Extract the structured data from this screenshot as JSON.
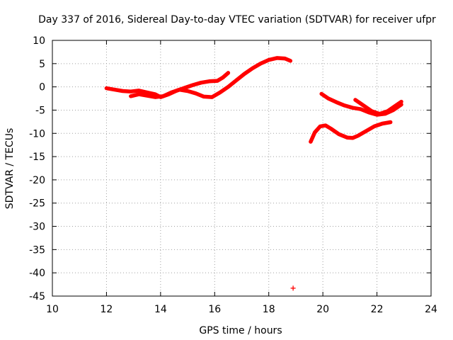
{
  "chart_data": {
    "type": "scatter",
    "title": "Day 337 of 2016, Sidereal Day-to-day VTEC variation (SDTVAR) for receiver ufpr",
    "xlabel": "GPS time / hours",
    "ylabel": "SDTVAR / TECUs",
    "xlim": [
      10,
      24
    ],
    "ylim": [
      -45,
      10
    ],
    "xticks": [
      10,
      12,
      14,
      16,
      18,
      20,
      22,
      24
    ],
    "yticks": [
      10,
      5,
      0,
      -5,
      -10,
      -15,
      -20,
      -25,
      -30,
      -35,
      -40,
      -45
    ],
    "grid": true,
    "legend": "none",
    "color": "#ff0000",
    "series": [
      {
        "x": [
          12.0,
          12.3,
          12.6,
          12.9,
          13.2,
          13.5,
          13.8,
          14.0,
          14.3,
          14.6,
          14.9,
          15.2,
          15.5,
          15.8,
          16.1,
          16.3,
          16.5
        ],
        "y": [
          -0.3,
          -0.6,
          -0.9,
          -1.0,
          -0.8,
          -1.2,
          -1.6,
          -2.2,
          -1.6,
          -0.8,
          -0.2,
          0.4,
          0.9,
          1.2,
          1.3,
          2.0,
          3.0
        ]
      },
      {
        "x": [
          12.9,
          13.2,
          13.5,
          13.8,
          14.1,
          14.4,
          14.7,
          15.0,
          15.3,
          15.6,
          15.9,
          16.2,
          16.5,
          16.8,
          17.1,
          17.4,
          17.7,
          18.0,
          18.3,
          18.6,
          18.8
        ],
        "y": [
          -2.0,
          -1.6,
          -1.9,
          -2.2,
          -2.0,
          -1.2,
          -0.6,
          -0.9,
          -1.4,
          -2.1,
          -2.2,
          -1.2,
          0.0,
          1.4,
          2.8,
          4.0,
          5.0,
          5.8,
          6.2,
          6.1,
          5.6
        ]
      },
      {
        "x": [
          19.95,
          20.2,
          20.5,
          20.8,
          21.1,
          21.4,
          21.7,
          22.0,
          22.3,
          22.6,
          22.9
        ],
        "y": [
          -1.5,
          -2.5,
          -3.3,
          -4.0,
          -4.5,
          -4.8,
          -5.5,
          -6.0,
          -5.8,
          -5.0,
          -3.8
        ]
      },
      {
        "x": [
          21.2,
          21.5,
          21.8,
          22.1,
          22.4,
          22.7,
          22.9
        ],
        "y": [
          -2.8,
          -4.0,
          -5.2,
          -5.8,
          -5.2,
          -4.0,
          -3.2
        ]
      },
      {
        "x": [
          19.55,
          19.7,
          19.9,
          20.1,
          20.3,
          20.6,
          20.9,
          21.1,
          21.3,
          21.6,
          21.9,
          22.2,
          22.5
        ],
        "y": [
          -11.8,
          -9.8,
          -8.5,
          -8.3,
          -9.0,
          -10.2,
          -10.9,
          -11.0,
          -10.5,
          -9.5,
          -8.5,
          -7.9,
          -7.6
        ]
      },
      {
        "x": [
          18.9
        ],
        "y": [
          -43.3
        ]
      }
    ]
  }
}
